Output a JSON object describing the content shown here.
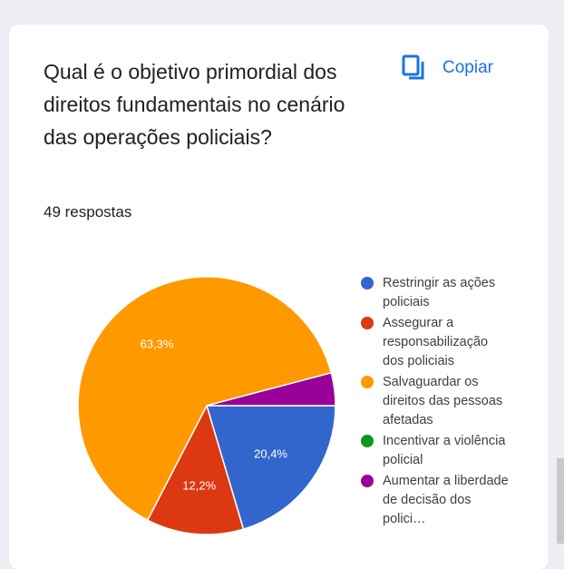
{
  "question": "Qual é o objetivo primordial dos direitos fundamentais no cenário das operações policiais?",
  "responses": "49 respostas",
  "copy_label": "Copiar",
  "icons": {
    "copy": "copy-icon"
  },
  "chart_data": {
    "type": "pie",
    "title": "",
    "categories": [
      "Restringir as ações policiais",
      "Assegurar a responsabilização dos policiais",
      "Salvaguardar os direitos das pessoas afetadas",
      "Incentivar a violência policial",
      "Aumentar a liberdade de decisão dos polici…"
    ],
    "values": [
      20.4,
      12.2,
      63.3,
      0,
      4.1
    ],
    "labels": [
      "20,4%",
      "12,2%",
      "63,3%",
      "",
      ""
    ],
    "colors": [
      "#3366cc",
      "#dc3912",
      "#ff9900",
      "#109618",
      "#990099"
    ],
    "legend": "right"
  }
}
